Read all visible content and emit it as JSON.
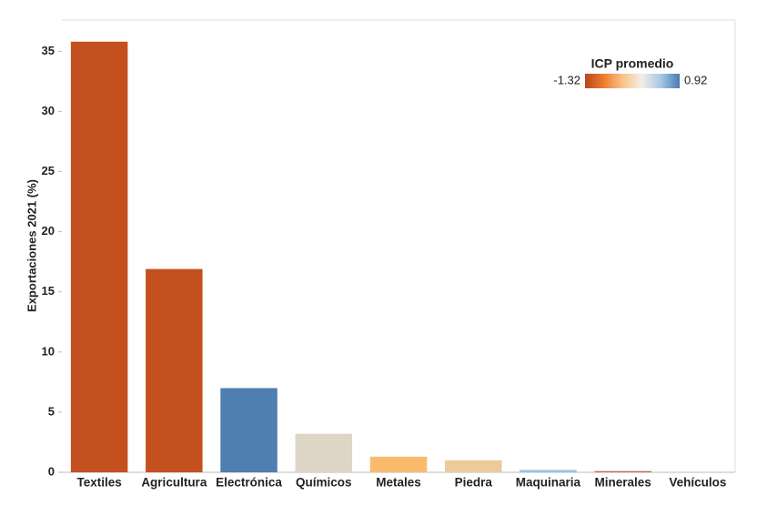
{
  "chart_data": {
    "type": "bar",
    "y_label": "Exportaciones 2021 (%)",
    "categories": [
      "Textiles",
      "Agricultura",
      "Electrónica",
      "Químicos",
      "Metales",
      "Piedra",
      "Maquinaria",
      "Minerales",
      "Vehículos"
    ],
    "values": [
      35.8,
      16.9,
      7.0,
      3.2,
      1.3,
      1.0,
      0.2,
      0.1,
      0.0
    ],
    "colors": [
      "#c4501f",
      "#c4501f",
      "#4e7fb0",
      "#ddd5c5",
      "#f8bb6e",
      "#ebcb9b",
      "#9fc3e2",
      "#c26b49",
      "#dcdcdc"
    ],
    "ylim": [
      0,
      37.6
    ],
    "yticks": [
      0,
      5,
      10,
      15,
      20,
      25,
      30,
      35
    ],
    "colorbar": {
      "title": "ICP promedio",
      "min": -1.32,
      "max": 0.92,
      "colors": [
        "#b8461c",
        "#ee7d2f",
        "#fbc38a",
        "#f3eee6",
        "#a6c8e6",
        "#4a7cb0"
      ]
    }
  }
}
